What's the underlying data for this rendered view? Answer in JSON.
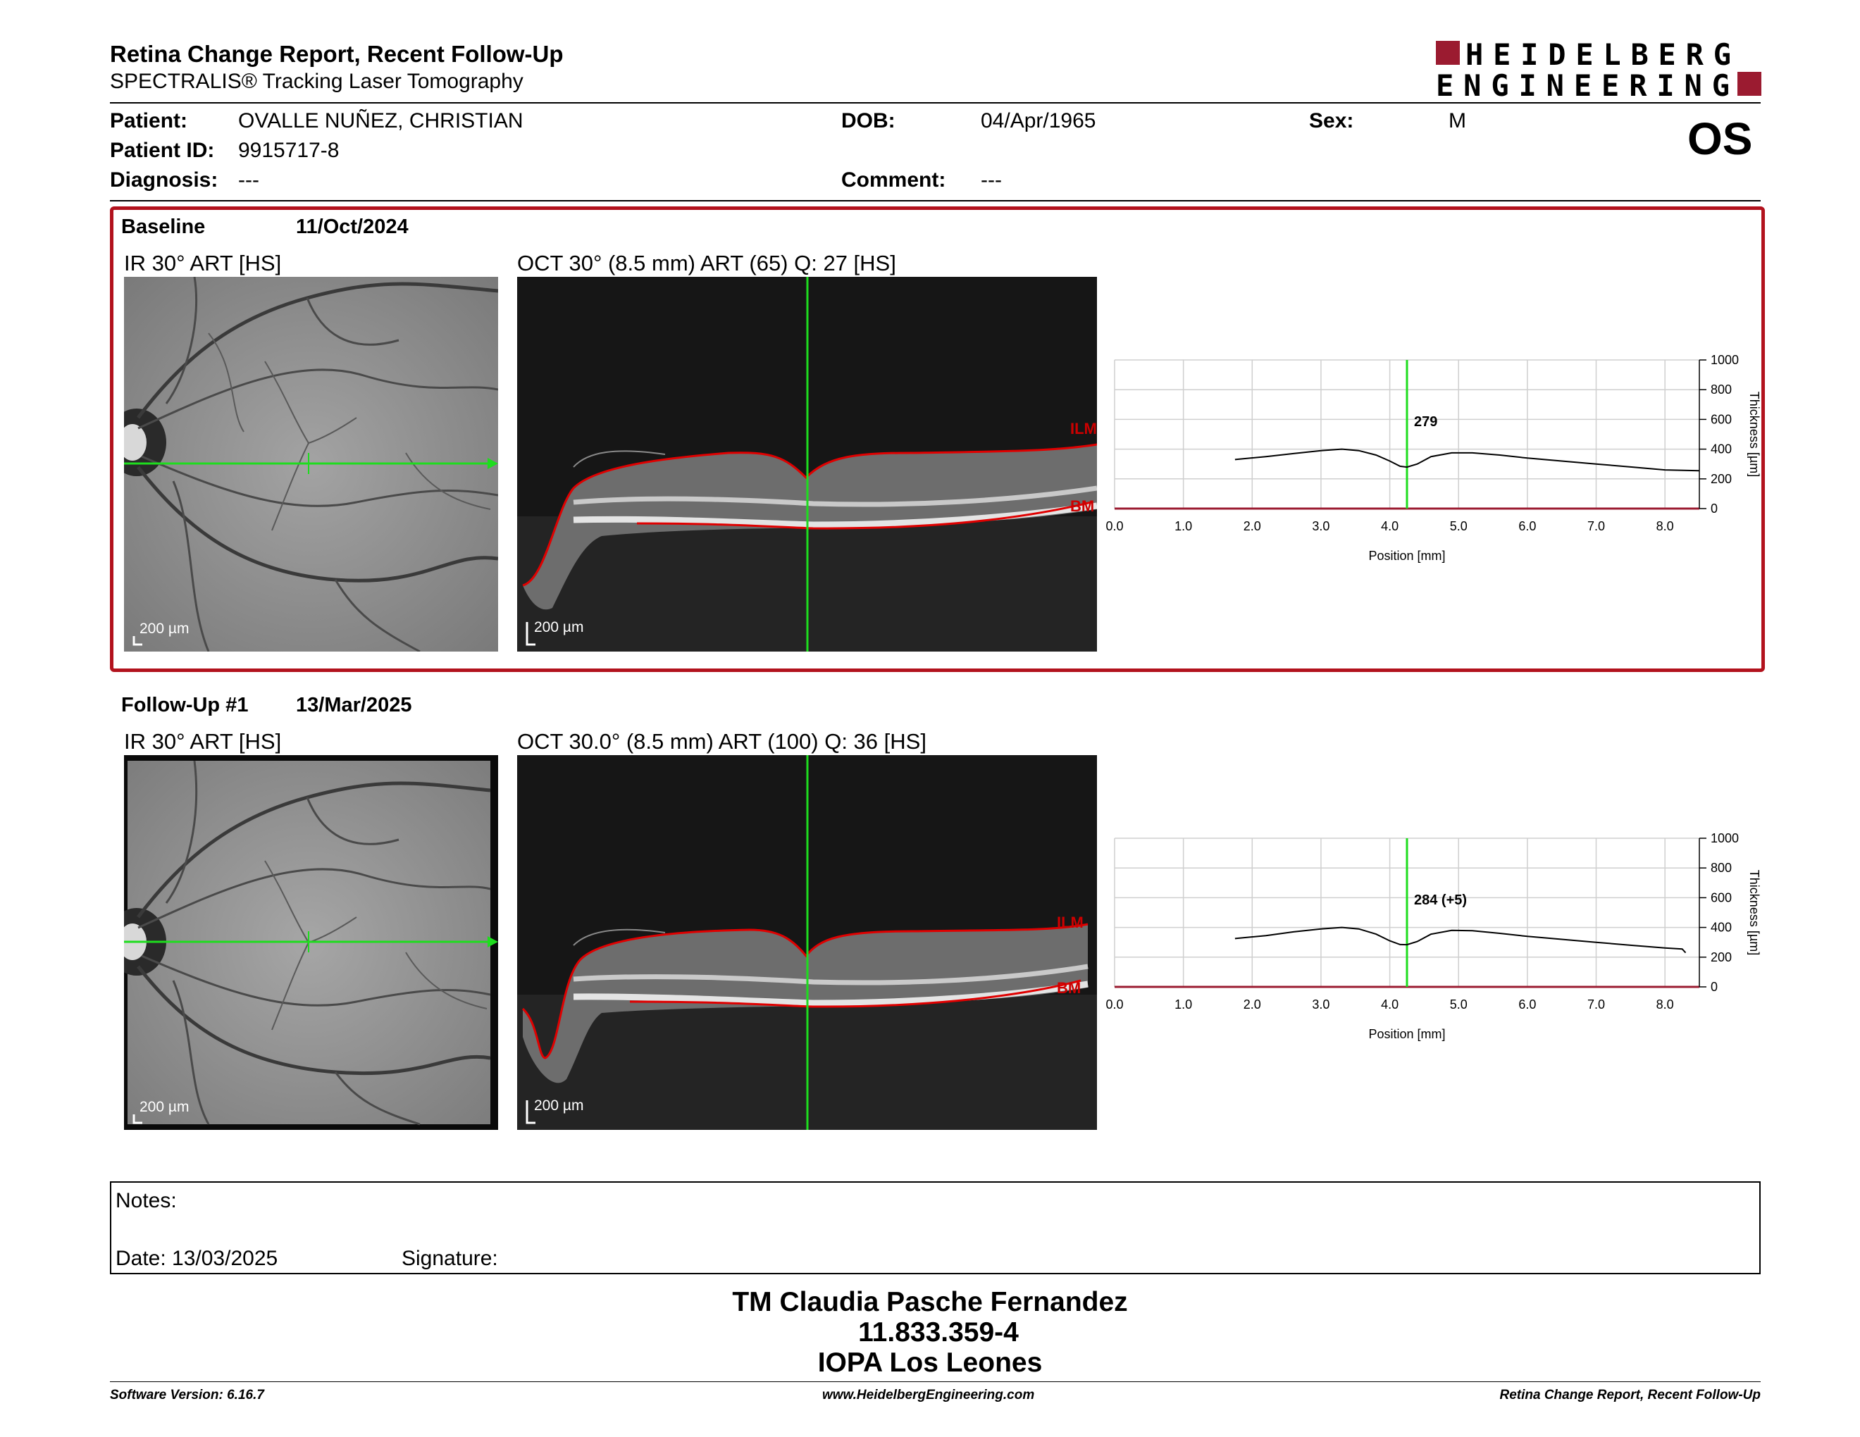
{
  "header": {
    "report_title": "Retina Change Report, Recent Follow-Up",
    "subtitle": "SPECTRALIS® Tracking Laser Tomography",
    "logo_line1": "HEIDELBERG",
    "logo_line2": "ENGINEERING",
    "brand_color": "#9b1b30"
  },
  "patient": {
    "patient_label": "Patient:",
    "patient_value": "OVALLE NUÑEZ, CHRISTIAN",
    "id_label": "Patient ID:",
    "id_value": "9915717-8",
    "diagnosis_label": "Diagnosis:",
    "diagnosis_value": "---",
    "dob_label": "DOB:",
    "dob_value": "04/Apr/1965",
    "comment_label": "Comment:",
    "comment_value": "---",
    "sex_label": "Sex:",
    "sex_value": "M",
    "eye": "OS"
  },
  "baseline": {
    "label": "Baseline",
    "date": "11/Oct/2024",
    "ir_title": "IR 30° ART [HS]",
    "oct_title": "OCT 30° (8.5 mm) ART (65) Q: 27 [HS]",
    "scale_label": "200 µm",
    "ilm_label": "ILM",
    "bm_label": "BM"
  },
  "followup": {
    "label": "Follow-Up #1",
    "date": "13/Mar/2025",
    "ir_title": "IR 30° ART [HS]",
    "oct_title": "OCT 30.0° (8.5 mm) ART (100) Q: 36 [HS]",
    "scale_label": "200 µm",
    "ilm_label": "ILM",
    "bm_label": "BM"
  },
  "chart_data": [
    {
      "type": "line",
      "xlabel": "Position [mm]",
      "ylabel": "Thickness [µm]",
      "xlim": [
        0,
        8.5
      ],
      "ylim": [
        0,
        1000
      ],
      "x_ticks": [
        "0.0",
        "1.0",
        "2.0",
        "3.0",
        "4.0",
        "5.0",
        "6.0",
        "7.0",
        "8.0"
      ],
      "y_ticks": [
        "0",
        "200",
        "400",
        "600",
        "800",
        "1000"
      ],
      "grid": true,
      "cursor_x": 4.25,
      "cursor_label": "279",
      "series": [
        {
          "x": [
            1.75,
            2.2,
            2.6,
            3.0,
            3.3,
            3.55,
            3.8,
            4.0,
            4.15,
            4.25,
            4.4,
            4.6,
            4.9,
            5.2,
            5.6,
            6.0,
            6.5,
            7.0,
            7.5,
            8.0,
            8.5
          ],
          "values": [
            330,
            350,
            370,
            390,
            400,
            390,
            360,
            320,
            285,
            279,
            300,
            350,
            375,
            375,
            360,
            340,
            320,
            300,
            280,
            260,
            255
          ]
        }
      ]
    },
    {
      "type": "line",
      "xlabel": "Position [mm]",
      "ylabel": "Thickness [µm]",
      "xlim": [
        0,
        8.5
      ],
      "ylim": [
        0,
        1000
      ],
      "x_ticks": [
        "0.0",
        "1.0",
        "2.0",
        "3.0",
        "4.0",
        "5.0",
        "6.0",
        "7.0",
        "8.0"
      ],
      "y_ticks": [
        "0",
        "200",
        "400",
        "600",
        "800",
        "1000"
      ],
      "grid": true,
      "cursor_x": 4.25,
      "cursor_label": "284 (+5)",
      "series": [
        {
          "x": [
            1.75,
            2.2,
            2.6,
            3.0,
            3.3,
            3.55,
            3.8,
            4.0,
            4.15,
            4.25,
            4.4,
            4.6,
            4.9,
            5.2,
            5.6,
            6.0,
            6.5,
            7.0,
            7.5,
            8.0,
            8.25,
            8.3
          ],
          "values": [
            325,
            345,
            370,
            390,
            400,
            390,
            355,
            310,
            285,
            284,
            305,
            355,
            380,
            378,
            360,
            340,
            320,
            300,
            280,
            262,
            255,
            230
          ]
        }
      ]
    }
  ],
  "notes": {
    "label": "Notes:",
    "date_label": "Date: 13/03/2025",
    "signature_label": "Signature:"
  },
  "signature": {
    "name": "TM Claudia Pasche Fernandez",
    "id": "11.833.359-4",
    "place": "IOPA Los Leones"
  },
  "footer": {
    "version": "Software Version: 6.16.7",
    "website": "www.HeidelbergEngineering.com",
    "report": "Retina Change Report, Recent Follow-Up"
  }
}
